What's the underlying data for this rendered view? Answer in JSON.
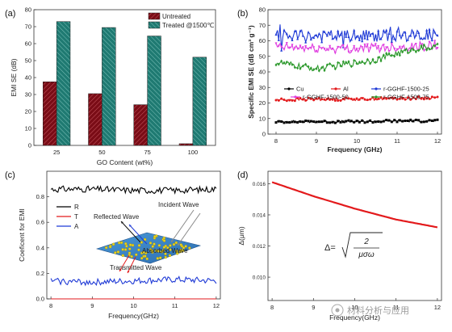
{
  "chart_data": [
    {
      "id": "a",
      "panel_label": "(a)",
      "type": "bar",
      "xlabel": "GO Content (wt%)",
      "ylabel": "EMI SE (dB)",
      "ylim": [
        0,
        80
      ],
      "yticks": [
        0,
        10,
        20,
        30,
        40,
        50,
        60,
        70,
        80
      ],
      "categories": [
        "25",
        "50",
        "75",
        "100"
      ],
      "series": [
        {
          "name": "Untreated",
          "color": "#7a0c16",
          "hatch": "diag-right",
          "values": [
            37.5,
            30.5,
            24.0,
            1.0
          ]
        },
        {
          "name": "Treated @1500℃",
          "color": "#1f7a72",
          "hatch": "diag-left",
          "values": [
            73.0,
            69.5,
            64.5,
            52.0
          ]
        }
      ],
      "legend_position": "top-right"
    },
    {
      "id": "b",
      "panel_label": "(b)",
      "type": "line",
      "xlabel": "Frequency (GHz)",
      "ylabel": "Specific EMI SE (dB cm³ g⁻¹)",
      "xlim": [
        7.8,
        12.1
      ],
      "ylim": [
        0,
        80
      ],
      "xticks": [
        8,
        9,
        10,
        11,
        12
      ],
      "yticks": [
        0,
        10,
        20,
        30,
        40,
        50,
        60,
        70,
        80
      ],
      "series": [
        {
          "name": "Cu",
          "color": "#000000",
          "marker": "square",
          "x": [
            8,
            9,
            10,
            11,
            12
          ],
          "y": [
            8,
            8,
            8,
            8.5,
            8.5
          ],
          "noise": 0.8
        },
        {
          "name": "Al",
          "color": "#e31a1c",
          "marker": "circle",
          "x": [
            8,
            9,
            10,
            11,
            12
          ],
          "y": [
            22,
            22.5,
            22.5,
            23,
            23.5
          ],
          "noise": 1.0
        },
        {
          "name": "r-GGHF-1500-25",
          "color": "#1f3ad6",
          "marker": "triangle",
          "x": [
            8,
            9,
            10,
            11,
            12
          ],
          "y": [
            63,
            63,
            63,
            63,
            64
          ],
          "noise": 4.0
        },
        {
          "name": "r-GGHF-1500-50",
          "color": "#e040e0",
          "marker": "triangle-down",
          "x": [
            8,
            9,
            10,
            11,
            12
          ],
          "y": [
            56,
            55,
            55,
            56,
            57
          ],
          "noise": 3.0
        },
        {
          "name": "r-GGHF-1500-75",
          "color": "#2e9a2e",
          "marker": "diamond",
          "x": [
            8,
            8.5,
            9,
            9.5,
            10,
            10.5,
            11,
            11.5,
            12
          ],
          "y": [
            46,
            44,
            42,
            44,
            46,
            48,
            52,
            55,
            56
          ],
          "noise": 2.0
        }
      ],
      "legend_position": "center"
    },
    {
      "id": "c",
      "panel_label": "(c)",
      "type": "line",
      "xlabel": "Frequency(GHz)",
      "ylabel": "Coeficent for EMI",
      "xlim": [
        7.9,
        12.1
      ],
      "ylim": [
        0,
        1.0
      ],
      "xticks": [
        8,
        9,
        10,
        11,
        12
      ],
      "yticks": [
        0.0,
        0.2,
        0.4,
        0.6,
        0.8
      ],
      "series": [
        {
          "name": "R",
          "color": "#000000",
          "x": [
            8,
            9,
            10,
            11,
            12
          ],
          "y": [
            0.86,
            0.86,
            0.85,
            0.85,
            0.86
          ],
          "noise": 0.025
        },
        {
          "name": "T",
          "color": "#e31a1c",
          "x": [
            8,
            12
          ],
          "y": [
            0.0,
            0.0
          ],
          "noise": 0.0
        },
        {
          "name": "A",
          "color": "#1f3ad6",
          "x": [
            8,
            9,
            10,
            11,
            12
          ],
          "y": [
            0.14,
            0.13,
            0.14,
            0.15,
            0.14
          ],
          "noise": 0.025
        }
      ],
      "legend_position": "left",
      "inset_labels": [
        "Incident Wave",
        "Reflected Wave",
        "Absorbed Wave",
        "Transmitted Wave"
      ]
    },
    {
      "id": "d",
      "panel_label": "(d)",
      "type": "line",
      "xlabel": "Frequency(GHz)",
      "ylabel": "Δ(μm)",
      "xlim": [
        7.9,
        12.1
      ],
      "ylim": [
        0.0085,
        0.0168
      ],
      "xticks": [
        8,
        9,
        10,
        11,
        12
      ],
      "yticks": [
        0.01,
        0.012,
        0.014,
        0.016
      ],
      "series": [
        {
          "name": "",
          "color": "#e31a1c",
          "x": [
            8,
            9,
            10,
            11,
            12
          ],
          "y": [
            0.0161,
            0.0152,
            0.0144,
            0.0137,
            0.0132
          ],
          "noise": 0.0
        }
      ],
      "formula": {
        "lhs": "Δ=",
        "numerator": "2",
        "denominator": "μσω"
      }
    }
  ],
  "watermark": "材料分析与应用"
}
